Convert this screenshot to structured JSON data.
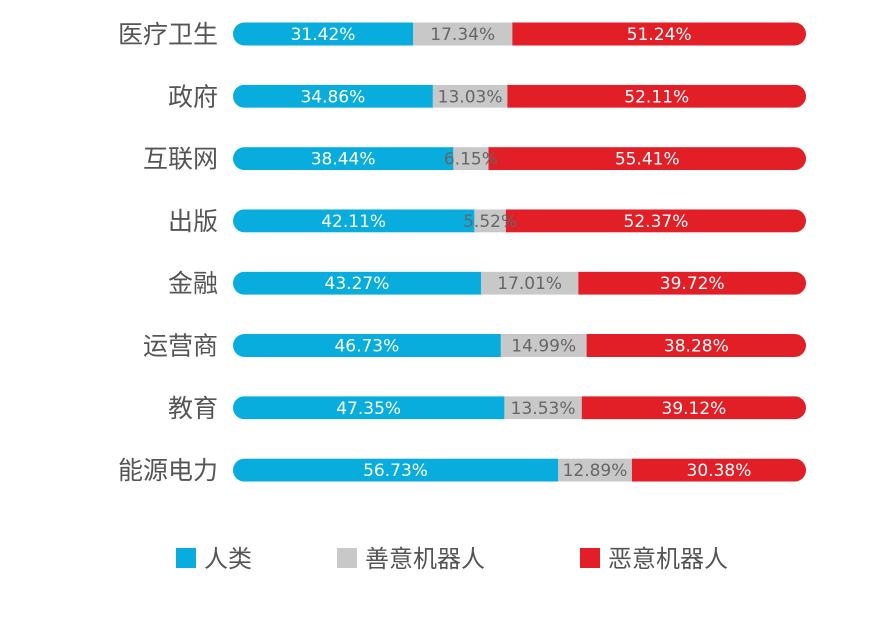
{
  "chart_data": {
    "type": "bar",
    "orientation": "horizontal",
    "stacked": true,
    "normalized": true,
    "value_unit": "%",
    "categories": [
      "医疗卫生",
      "政府",
      "互联网",
      "出版",
      "金融",
      "运营商",
      "教育",
      "能源电力"
    ],
    "series": [
      {
        "name": "人类",
        "color": "#08ADDD",
        "label_color": "#ffffff",
        "values": [
          31.42,
          34.86,
          38.44,
          42.11,
          43.27,
          46.73,
          47.35,
          56.73
        ],
        "labels": [
          "31.42%",
          "34.86%",
          "38.44%",
          "42.11%",
          "43.27%",
          "46.73%",
          "47.35%",
          "56.73%"
        ]
      },
      {
        "name": "善意机器人",
        "color": "#C8C8C8",
        "label_color": "#666666",
        "values": [
          17.34,
          13.03,
          6.15,
          5.52,
          17.01,
          14.99,
          13.53,
          12.89
        ],
        "labels": [
          "17.34%",
          "13.03%",
          "6.15%",
          "5.52%",
          "17.01%",
          "14.99%",
          "13.53%",
          "12.89%"
        ]
      },
      {
        "name": "恶意机器人",
        "color": "#E21E26",
        "label_color": "#ffffff",
        "values": [
          51.24,
          52.11,
          55.41,
          52.37,
          39.72,
          38.28,
          39.12,
          30.38
        ],
        "labels": [
          "51.24%",
          "52.11%",
          "55.41%",
          "52.37%",
          "39.72%",
          "38.28%",
          "39.12%",
          "30.38%"
        ]
      }
    ],
    "legend_position": "bottom",
    "grid": false,
    "title": "",
    "xlabel": "",
    "ylabel": ""
  }
}
